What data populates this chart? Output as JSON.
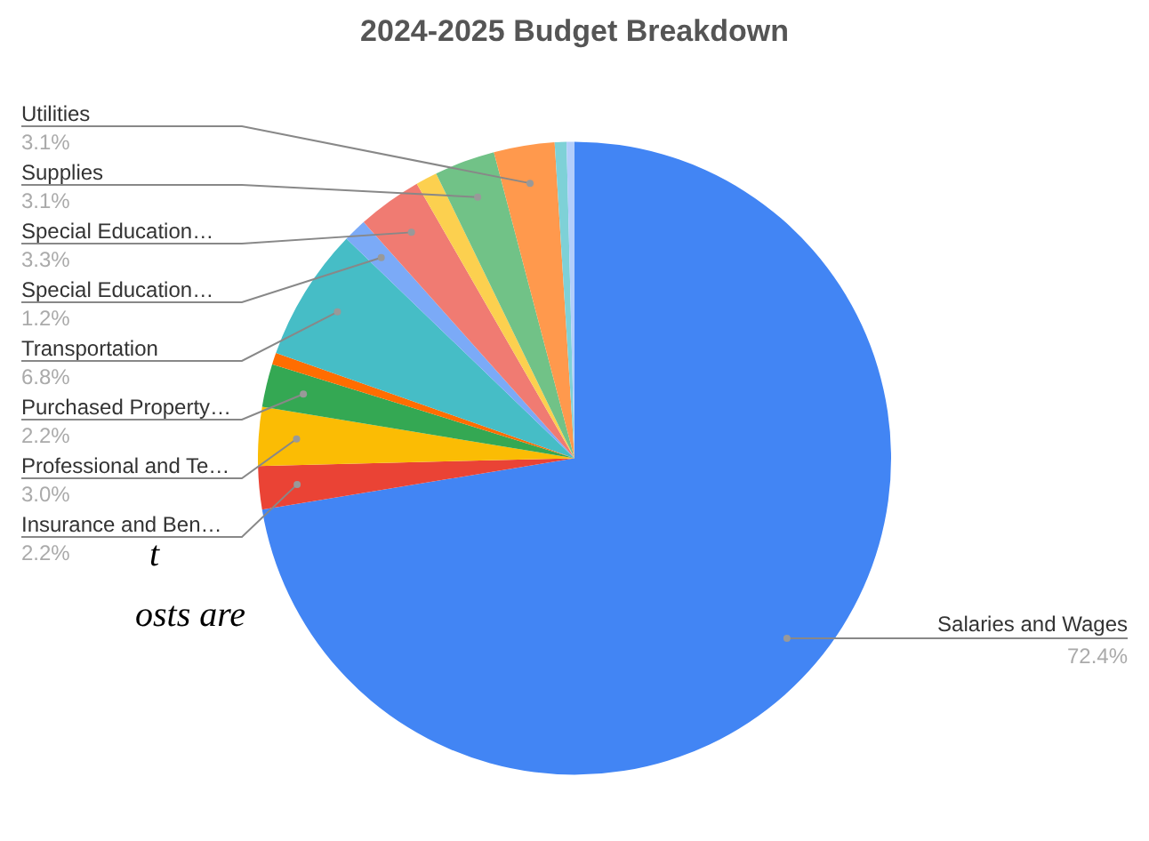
{
  "chart_data": {
    "type": "pie",
    "title": "2024-2025 Budget Breakdown",
    "categories": [
      "Salaries and Wages",
      "Insurance and Ben…",
      "Professional and Te…",
      "Purchased Property…",
      null,
      "Transportation",
      "Special Education…",
      "Special Education…",
      null,
      "Supplies",
      "Utilities",
      null,
      null
    ],
    "values": [
      72.4,
      2.2,
      3.0,
      2.2,
      0.6,
      6.8,
      1.2,
      3.3,
      1.1,
      3.1,
      3.1,
      0.6,
      0.4
    ],
    "value_labels": [
      "72.4%",
      "2.2%",
      "3.0%",
      "2.2%",
      null,
      "6.8%",
      "1.2%",
      "3.3%",
      null,
      "3.1%",
      "3.1%",
      null,
      null
    ],
    "colors": [
      "#4285f4",
      "#ea4335",
      "#fbbc04",
      "#34a853",
      "#ff6d01",
      "#46bdc6",
      "#7baaf7",
      "#f07b72",
      "#fcd04f",
      "#71c287",
      "#ff994d",
      "#7ed1d7",
      "#b3cefb"
    ],
    "legend": false,
    "annotations": [
      "t",
      "osts are"
    ]
  }
}
